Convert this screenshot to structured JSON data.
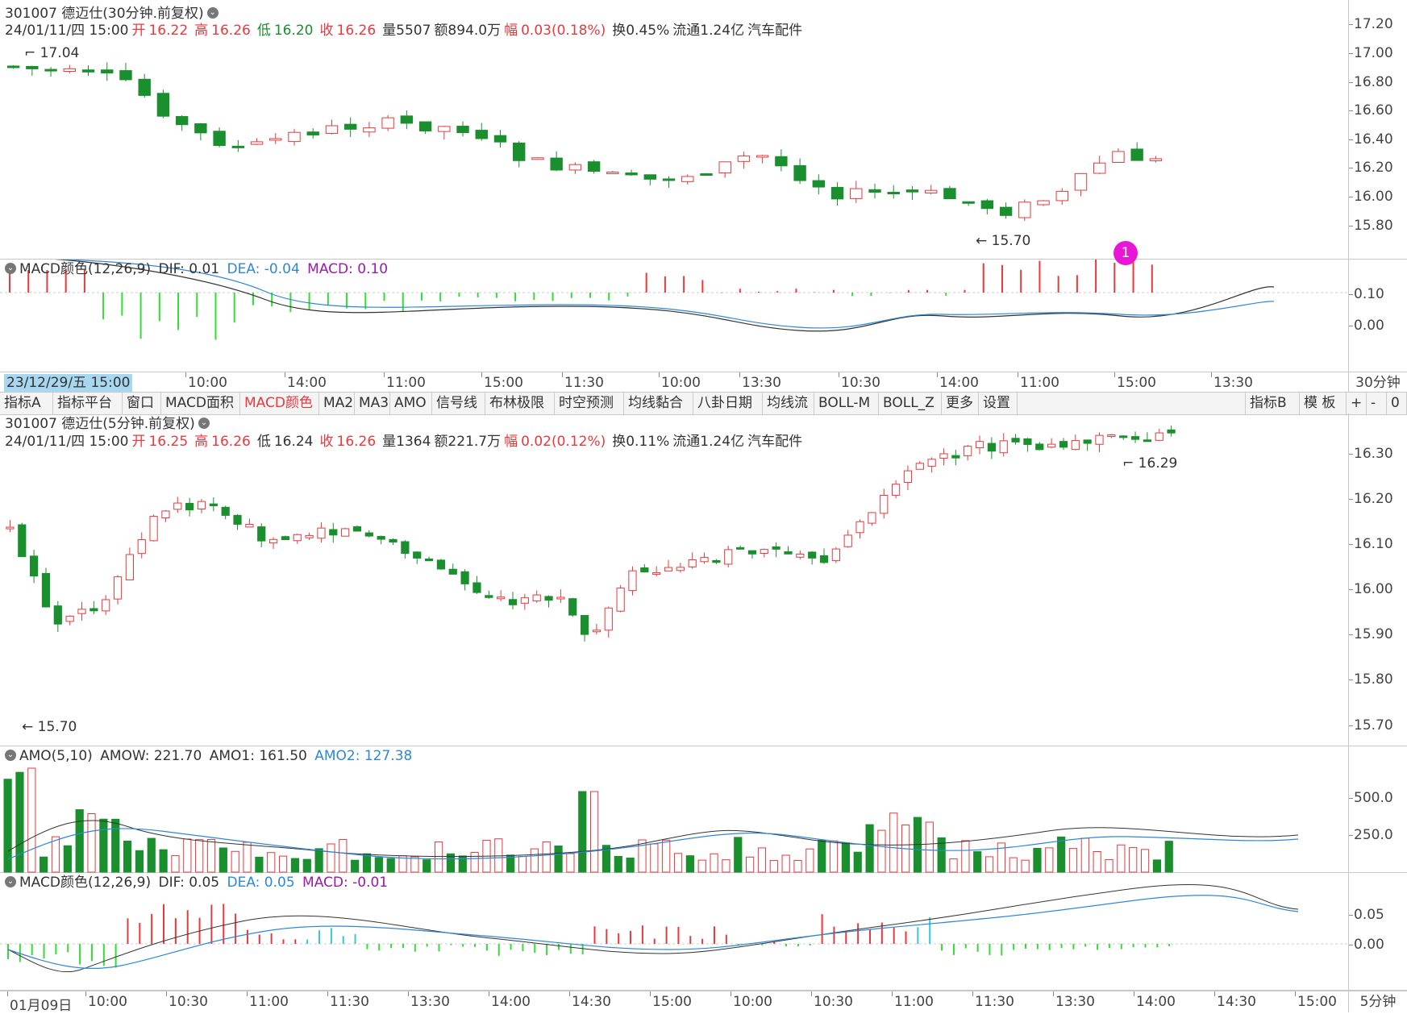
{
  "top": {
    "title": "301007 德迈仕(30分钟.前复权)",
    "info": {
      "date": "24/01/11/四 15:00",
      "open_label": "开",
      "open": "16.22",
      "high_label": "高",
      "high": "16.26",
      "low_label": "低",
      "low": "16.20",
      "close_label": "收",
      "close": "16.26",
      "volume": "量5507",
      "amount": "额894.0万",
      "change_label": "幅",
      "change": "0.03(0.18%)",
      "turnover": "换0.45%",
      "float_cap": "流通1.24亿",
      "industry": "汽车配件"
    },
    "yticks": [
      "17.20",
      "17.00",
      "16.80",
      "16.60",
      "16.40",
      "16.20",
      "16.00",
      "15.80"
    ],
    "high_marker": "17.04",
    "low_marker": "15.70",
    "badge": "1",
    "macd_title": "MACD颜色(12,26,9)",
    "macd_dif": "DIF: 0.01",
    "macd_dea": "DEA: -0.04",
    "macd_val": "MACD: 0.10",
    "macd_yticks": [
      "0.10",
      "0.00"
    ],
    "cursor_time": "23/12/29/五 15:00",
    "time_labels": [
      "10:00",
      "14:00",
      "11:00",
      "15:00",
      "11:30",
      "10:00",
      "13:30",
      "10:30",
      "14:00",
      "11:00",
      "15:00",
      "13:30"
    ],
    "period": "30分钟"
  },
  "toolbar": {
    "items": [
      "指标A",
      "指标平台",
      "窗口",
      "MACD面积",
      "MACD颜色",
      "MA2",
      "MA3",
      "AMO",
      "信号线",
      "布林极限",
      "时空预测",
      "均线黏合",
      "八卦日期",
      "均线流",
      "BOLL-M",
      "BOLL_Z",
      "更多",
      "设置"
    ],
    "active_index": 4,
    "right_items": [
      "指标B",
      "模 板",
      "+",
      "-",
      "0"
    ]
  },
  "bottom": {
    "title": "301007 德迈仕(5分钟.前复权)",
    "info": {
      "date": "24/01/11/四 15:00",
      "open_label": "开",
      "open": "16.25",
      "high_label": "高",
      "high": "16.26",
      "low_label": "低",
      "low": "16.24",
      "close_label": "收",
      "close": "16.26",
      "volume": "量1364",
      "amount": "额221.7万",
      "change_label": "幅",
      "change": "0.02(0.12%)",
      "turnover": "换0.11%",
      "float_cap": "流通1.24亿",
      "industry": "汽车配件"
    },
    "yticks": [
      "16.30",
      "16.20",
      "16.10",
      "16.00",
      "15.90",
      "15.80",
      "15.70"
    ],
    "high_marker": "16.29",
    "low_marker": "15.70",
    "amo_title": "AMO(5,10)",
    "amo_w": "AMOW: 221.70",
    "amo_1": "AMO1: 161.50",
    "amo_2": "AMO2: 127.38",
    "amo_yticks": [
      "500.0",
      "250.0"
    ],
    "macd_title": "MACD颜色(12,26,9)",
    "macd_dif": "DIF: 0.05",
    "macd_dea": "DEA: 0.05",
    "macd_val": "MACD: -0.01",
    "macd_yticks": [
      "0.05",
      "0.00"
    ],
    "time_labels": [
      "01月09日",
      "10:00",
      "10:30",
      "11:00",
      "11:30",
      "13:30",
      "14:00",
      "14:30",
      "15:00",
      "10:00",
      "10:30",
      "11:00",
      "11:30",
      "13:30",
      "14:00",
      "14:30",
      "15:00"
    ],
    "period": "5分钟"
  },
  "colors": {
    "up": "#e8393c",
    "down": "#1a8f2e",
    "dif": "#333333",
    "dea": "#2d88d8",
    "macd_pos": "#e8393c",
    "macd_neg": "#33dd33",
    "macd_cyan": "#33c8d8"
  }
}
